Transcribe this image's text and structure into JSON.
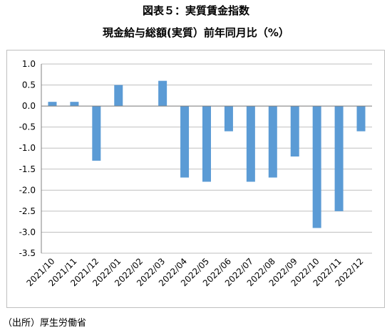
{
  "header": {
    "title": "図表５：実質賃金指数",
    "subtitle": "現金給与総額(実質）前年同月比（%）"
  },
  "source": "（出所）厚生労働省",
  "chart_data": {
    "type": "bar",
    "categories": [
      "2021/10",
      "2021/11",
      "2021/12",
      "2022/01",
      "2022/02",
      "2022/03",
      "2022/04",
      "2022/05",
      "2022/06",
      "2022/07",
      "2022/08",
      "2022/09",
      "2022/10",
      "2022/11",
      "2022/12"
    ],
    "values": [
      0.1,
      0.1,
      -1.3,
      0.5,
      0.0,
      0.6,
      -1.7,
      -1.8,
      -0.6,
      -1.8,
      -1.7,
      -1.2,
      -2.9,
      -2.5,
      -0.6
    ],
    "yticks": [
      "1.0",
      "0.5",
      "0.0",
      "-0.5",
      "-1.0",
      "-1.5",
      "-2.0",
      "-2.5",
      "-3.0",
      "-3.5"
    ],
    "ylim": [
      -3.5,
      1.0
    ],
    "grid": true,
    "bar_color": "#5b9bd5"
  }
}
